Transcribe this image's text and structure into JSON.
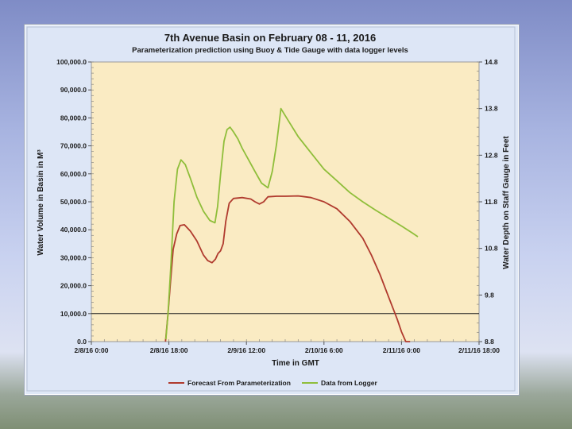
{
  "chart_data": {
    "type": "line",
    "title": "7th Avenue Basin on February 08 - 11, 2016",
    "subtitle": "Parameterization prediction using Buoy & Tide Gauge with data logger levels",
    "xlabel": "Time in GMT",
    "ylabel_left": "Water Volume in Basin in M³",
    "ylabel_right": "Water Depth on Staff Gauge in Feet",
    "x_tick_labels": [
      "2/8/16 0:00",
      "2/8/16 18:00",
      "2/9/16 12:00",
      "2/10/16 6:00",
      "2/11/16 0:00",
      "2/11/16 18:00"
    ],
    "x_ticks_hours": [
      0,
      18,
      36,
      54,
      72,
      90
    ],
    "xlim_hours": [
      0,
      90
    ],
    "y_left_tick_labels": [
      "100,000.0",
      "90,000.0",
      "80,000.0",
      "70,000.0",
      "60,000.0",
      "50,000.0",
      "40,000.0",
      "30,000.0",
      "20,000.0",
      "10,000.0",
      "0.0"
    ],
    "ylim_left": [
      0,
      100000
    ],
    "y_right_tick_labels": [
      "14.8",
      "13.8",
      "12.8",
      "11.8",
      "10.8",
      "9.8",
      "8.8"
    ],
    "ylim_right": [
      8.8,
      14.8
    ],
    "reference_line_y_left": 10000,
    "grid": false,
    "legend_position": "bottom",
    "series": [
      {
        "name": "Forecast From Parameterization",
        "color": "#b03a2e",
        "axis": "left",
        "x_hours": [
          17.2,
          17.8,
          18.4,
          19.0,
          19.8,
          20.6,
          21.6,
          23.0,
          24.5,
          26.0,
          27.0,
          28.0,
          28.8,
          29.4,
          30.0,
          30.6,
          31.2,
          32.0,
          33.0,
          35.0,
          37.0,
          38.0,
          39.0,
          40.0,
          41.0,
          43.0,
          45.0,
          48.0,
          51.0,
          54.0,
          57.0,
          60.0,
          63.0,
          65.0,
          67.0,
          69.0,
          71.0,
          72.0,
          73.0,
          74.0
        ],
        "values": [
          0,
          10000,
          22000,
          33000,
          38500,
          41500,
          41800,
          39500,
          36000,
          31000,
          29000,
          28200,
          29500,
          31500,
          32500,
          35000,
          43000,
          49500,
          51200,
          51500,
          51000,
          50000,
          49200,
          50000,
          51800,
          52000,
          52000,
          52100,
          51500,
          50000,
          47500,
          43000,
          37000,
          31000,
          24000,
          16000,
          8000,
          3500,
          0,
          0
        ]
      },
      {
        "name": "Data from Logger",
        "color": "#8fbe3a",
        "axis": "right",
        "x_hours": [
          17.3,
          17.8,
          18.5,
          19.2,
          20.0,
          20.8,
          21.8,
          23.0,
          24.5,
          26.0,
          27.5,
          28.7,
          29.3,
          30.0,
          30.8,
          31.5,
          32.2,
          33.0,
          34.0,
          35.0,
          36.5,
          38.0,
          39.5,
          41.0,
          42.0,
          43.0,
          44.0,
          46.0,
          48.0,
          51.0,
          54.0,
          57.0,
          60.0,
          63.0,
          66.0,
          69.0,
          72.0,
          74.5,
          75.8
        ],
        "values": [
          8.85,
          9.4,
          10.5,
          11.8,
          12.5,
          12.7,
          12.6,
          12.3,
          11.9,
          11.6,
          11.4,
          11.35,
          11.7,
          12.4,
          13.1,
          13.35,
          13.4,
          13.3,
          13.15,
          12.95,
          12.7,
          12.45,
          12.2,
          12.1,
          12.45,
          13.05,
          13.8,
          13.5,
          13.2,
          12.85,
          12.5,
          12.25,
          12.0,
          11.8,
          11.62,
          11.45,
          11.28,
          11.13,
          11.05
        ]
      }
    ]
  }
}
